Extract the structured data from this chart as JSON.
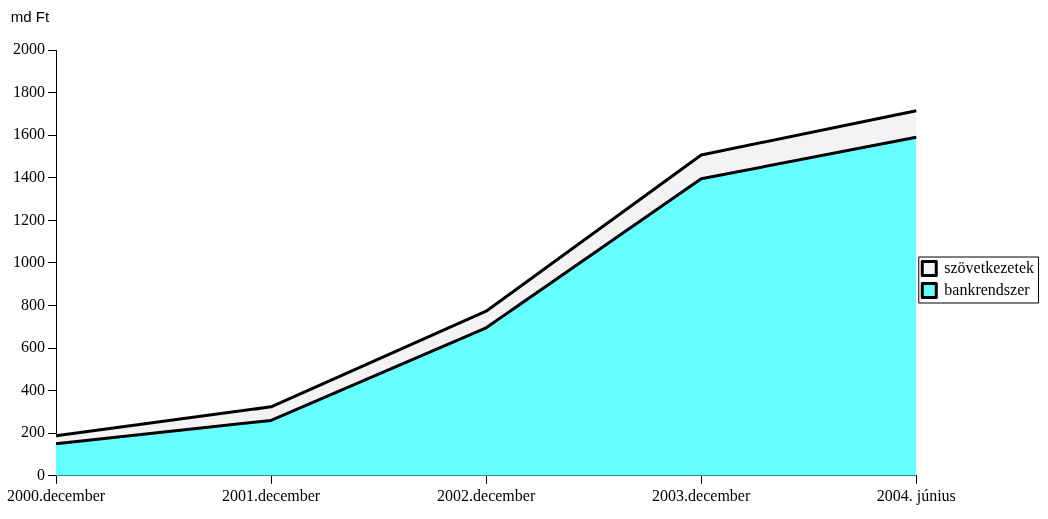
{
  "chart_data": {
    "type": "area",
    "ylabel": "md Ft",
    "categories": [
      "2000.december",
      "2001.december",
      "2002.december",
      "2003.december",
      "2004. június"
    ],
    "stacked": true,
    "series": [
      {
        "name": "bankrendszer",
        "color": "#66ffff",
        "values": [
          150,
          260,
          695,
          1395,
          1590
        ]
      },
      {
        "name": "szövetkezetek",
        "color": "#f4f2f4",
        "values": [
          38,
          64,
          78,
          112,
          125
        ]
      }
    ],
    "ylim": [
      0,
      2000
    ],
    "yticks": [
      0,
      200,
      400,
      600,
      800,
      1000,
      1200,
      1400,
      1600,
      1800,
      2000
    ],
    "grid": false,
    "legend": "right"
  }
}
